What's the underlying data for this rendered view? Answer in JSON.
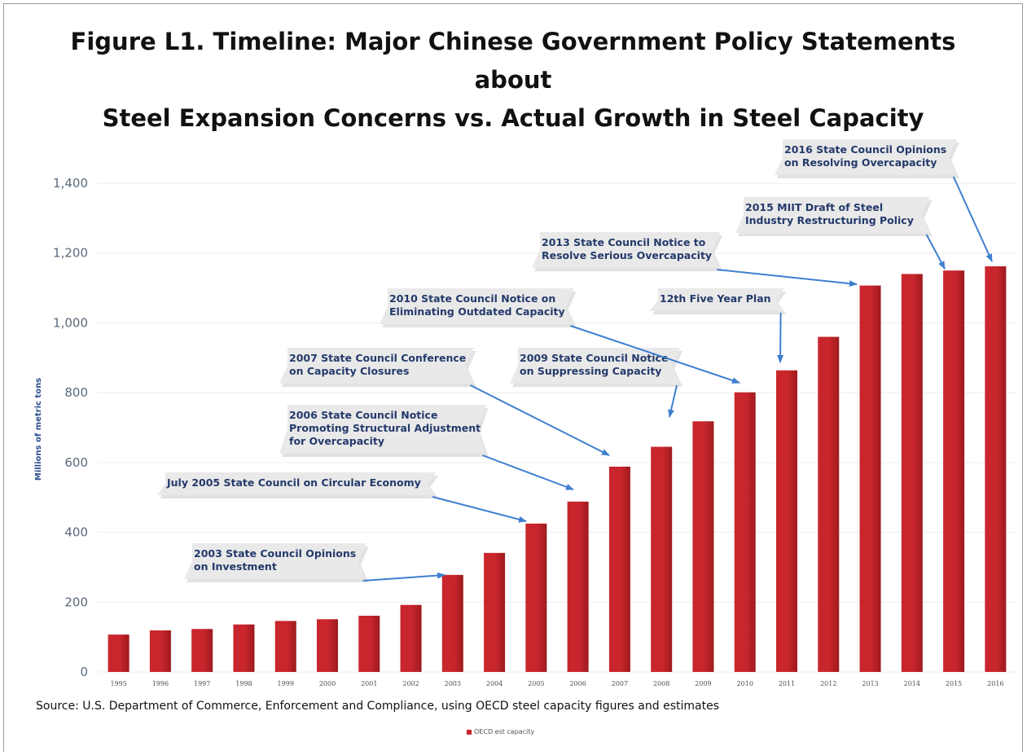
{
  "title_line1": "Figure L1. Timeline: Major Chinese Government Policy Statements about",
  "title_line2": "Steel Expansion Concerns vs. Actual Growth in Steel Capacity",
  "source": "Source: U.S. Department of Commerce, Enforcement and Compliance, using OECD steel capacity figures and estimates",
  "colors": {
    "bar": "#c8262c",
    "bar_dark": "#9e1a1e",
    "arrow": "#3f7fd0",
    "callout_fill": "#e9e9e9"
  },
  "chart_data": {
    "type": "bar",
    "title": "Figure L1. Timeline: Major Chinese Government Policy Statements about Steel Expansion Concerns vs. Actual Growth in Steel Capacity",
    "ylabel": "Millions of metric tons",
    "xlabel": "",
    "ylim": [
      0,
      1400
    ],
    "yticks": [
      0,
      200,
      400,
      600,
      800,
      1000,
      1200,
      1400
    ],
    "ytick_labels": [
      "0",
      "200",
      "400",
      "600",
      "800",
      "1,000",
      "1,200",
      "1,400"
    ],
    "grid": true,
    "legend_position": "bottom-center",
    "categories": [
      "1995",
      "1996",
      "1997",
      "1998",
      "1999",
      "2000",
      "2001",
      "2002",
      "2003",
      "2004",
      "2005",
      "2006",
      "2007",
      "2008",
      "2009",
      "2010",
      "2011",
      "2012",
      "2013",
      "2014",
      "2015",
      "2016"
    ],
    "series": [
      {
        "name": "OECD est capacity",
        "values": [
          107,
          119,
          123,
          136,
          146,
          151,
          161,
          192,
          278,
          341,
          425,
          488,
          588,
          645,
          718,
          801,
          864,
          960,
          1107,
          1140,
          1150,
          1162
        ]
      }
    ],
    "annotations": [
      {
        "lines": [
          "2003 State Council Opinions",
          "on Investment"
        ],
        "target": "2003"
      },
      {
        "lines": [
          "July 2005 State Council on Circular Economy"
        ],
        "target": "2005"
      },
      {
        "lines": [
          "2006 State Council Notice",
          "Promoting Structural Adjustment",
          "for Overcapacity"
        ],
        "target": "2006"
      },
      {
        "lines": [
          "2007 State Council Conference",
          "on Capacity Closures"
        ],
        "target": "2007"
      },
      {
        "lines": [
          "2009 State Council Notice",
          "on Suppressing Capacity"
        ],
        "target": "2009"
      },
      {
        "lines": [
          "2010 State Council Notice on",
          "Eliminating Outdated Capacity"
        ],
        "target": "2010"
      },
      {
        "lines": [
          "12th Five Year Plan"
        ],
        "target": "2011"
      },
      {
        "lines": [
          "2013 State Council Notice to",
          "Resolve Serious Overcapacity"
        ],
        "target": "2013"
      },
      {
        "lines": [
          "2015 MIIT Draft of Steel",
          "Industry Restructuring Policy"
        ],
        "target": "2015"
      },
      {
        "lines": [
          "2016 State Council Opinions",
          "on Resolving Overcapacity"
        ],
        "target": "2016"
      }
    ]
  }
}
